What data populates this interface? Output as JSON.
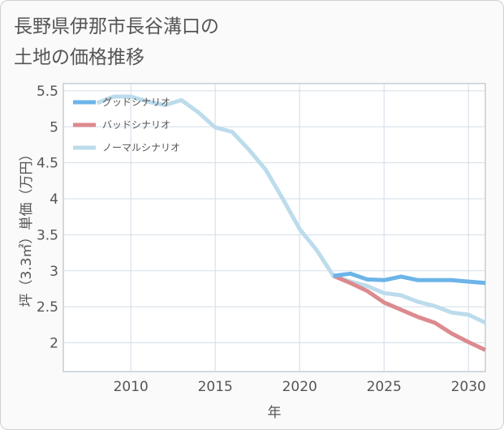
{
  "title": {
    "line1": "長野県伊那市長谷溝口の",
    "line2": "土地の価格推移"
  },
  "chart_data": {
    "type": "line",
    "xlabel": "年",
    "ylabel": "坪（3.3㎡）単価（万円）",
    "xlim": [
      2006,
      2031
    ],
    "ylim": [
      1.6,
      5.6
    ],
    "xticks": [
      2010,
      2015,
      2020,
      2025,
      2030
    ],
    "yticks": [
      2,
      2.5,
      3,
      3.5,
      4,
      4.5,
      5,
      5.5
    ],
    "grid": true,
    "legend_position": "top-left",
    "series": [
      {
        "name": "グッドシナリオ",
        "color": "#6cb4e8",
        "x": [
          2022,
          2023,
          2024,
          2025,
          2026,
          2027,
          2028,
          2029,
          2030,
          2031
        ],
        "values": [
          2.93,
          2.96,
          2.88,
          2.87,
          2.92,
          2.87,
          2.87,
          2.87,
          2.85,
          2.83
        ]
      },
      {
        "name": "バッドシナリオ",
        "color": "#dc8a8e",
        "x": [
          2022,
          2023,
          2024,
          2025,
          2026,
          2027,
          2028,
          2029,
          2030,
          2031
        ],
        "values": [
          2.93,
          2.83,
          2.72,
          2.56,
          2.46,
          2.36,
          2.28,
          2.13,
          2.01,
          1.9
        ]
      },
      {
        "name": "ノーマルシナリオ",
        "color": "#bcdcec",
        "x": [
          2008,
          2009,
          2010,
          2011,
          2012,
          2013,
          2014,
          2015,
          2016,
          2017,
          2018,
          2019,
          2020,
          2021,
          2022,
          2023,
          2024,
          2025,
          2026,
          2027,
          2028,
          2029,
          2030,
          2031
        ],
        "values": [
          5.33,
          5.42,
          5.42,
          5.35,
          5.3,
          5.37,
          5.2,
          4.99,
          4.93,
          4.68,
          4.4,
          4.0,
          3.58,
          3.29,
          2.93,
          2.85,
          2.79,
          2.69,
          2.66,
          2.57,
          2.51,
          2.42,
          2.39,
          2.28
        ]
      }
    ]
  }
}
